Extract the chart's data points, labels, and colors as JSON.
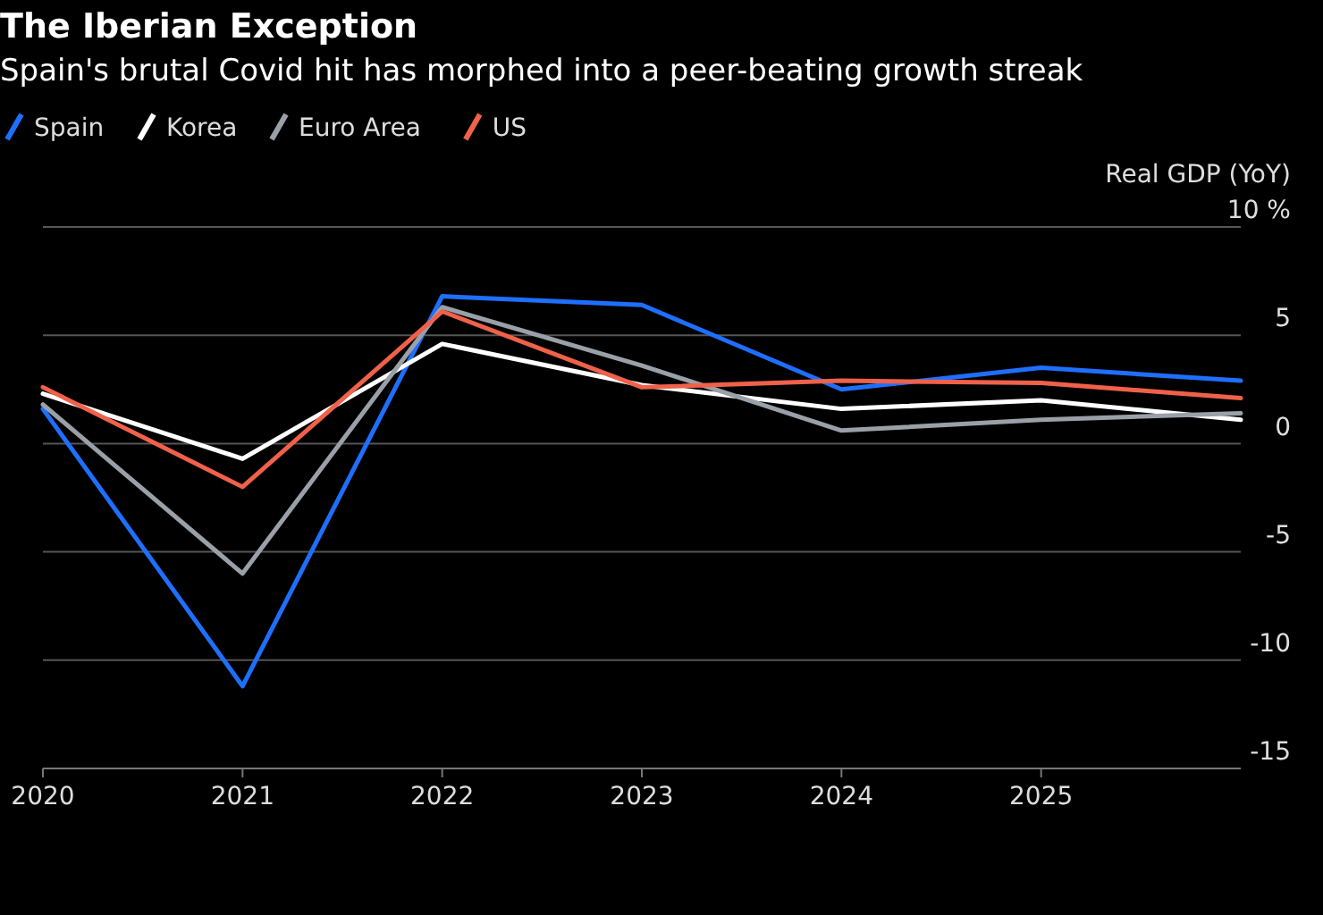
{
  "chart_data": {
    "type": "line",
    "title": "The Iberian Exception",
    "subtitle": "Spain's brutal Covid hit has morphed into a peer-beating growth streak",
    "ylabel": "Real GDP (YoY)",
    "x": [
      2020,
      2021,
      2022,
      2023,
      2024,
      2025,
      2026
    ],
    "series": [
      {
        "name": "Spain",
        "color": "#1f6fff",
        "values": [
          1.6,
          -11.2,
          6.8,
          6.4,
          2.5,
          3.5,
          2.9
        ]
      },
      {
        "name": "Korea",
        "color": "#ffffff",
        "values": [
          2.3,
          -0.7,
          4.6,
          2.7,
          1.6,
          2.0,
          1.1
        ]
      },
      {
        "name": "Euro Area",
        "color": "#9aa0a8",
        "values": [
          1.8,
          -6.0,
          6.3,
          3.6,
          0.6,
          1.1,
          1.4
        ]
      },
      {
        "name": "US",
        "color": "#f0614a",
        "values": [
          2.6,
          -2.0,
          6.1,
          2.6,
          2.9,
          2.8,
          2.1
        ]
      }
    ],
    "xlim": [
      2020,
      2026
    ],
    "xticks": [
      2020,
      2021,
      2022,
      2023,
      2024,
      2025
    ],
    "ylim": [
      -15,
      10
    ],
    "yticks": [
      -15,
      -10,
      -5,
      0,
      5,
      {
        "value": 10,
        "label": "10 %"
      }
    ],
    "grid": "y",
    "legend": "top left",
    "marker": "none",
    "line_style": "solid"
  }
}
